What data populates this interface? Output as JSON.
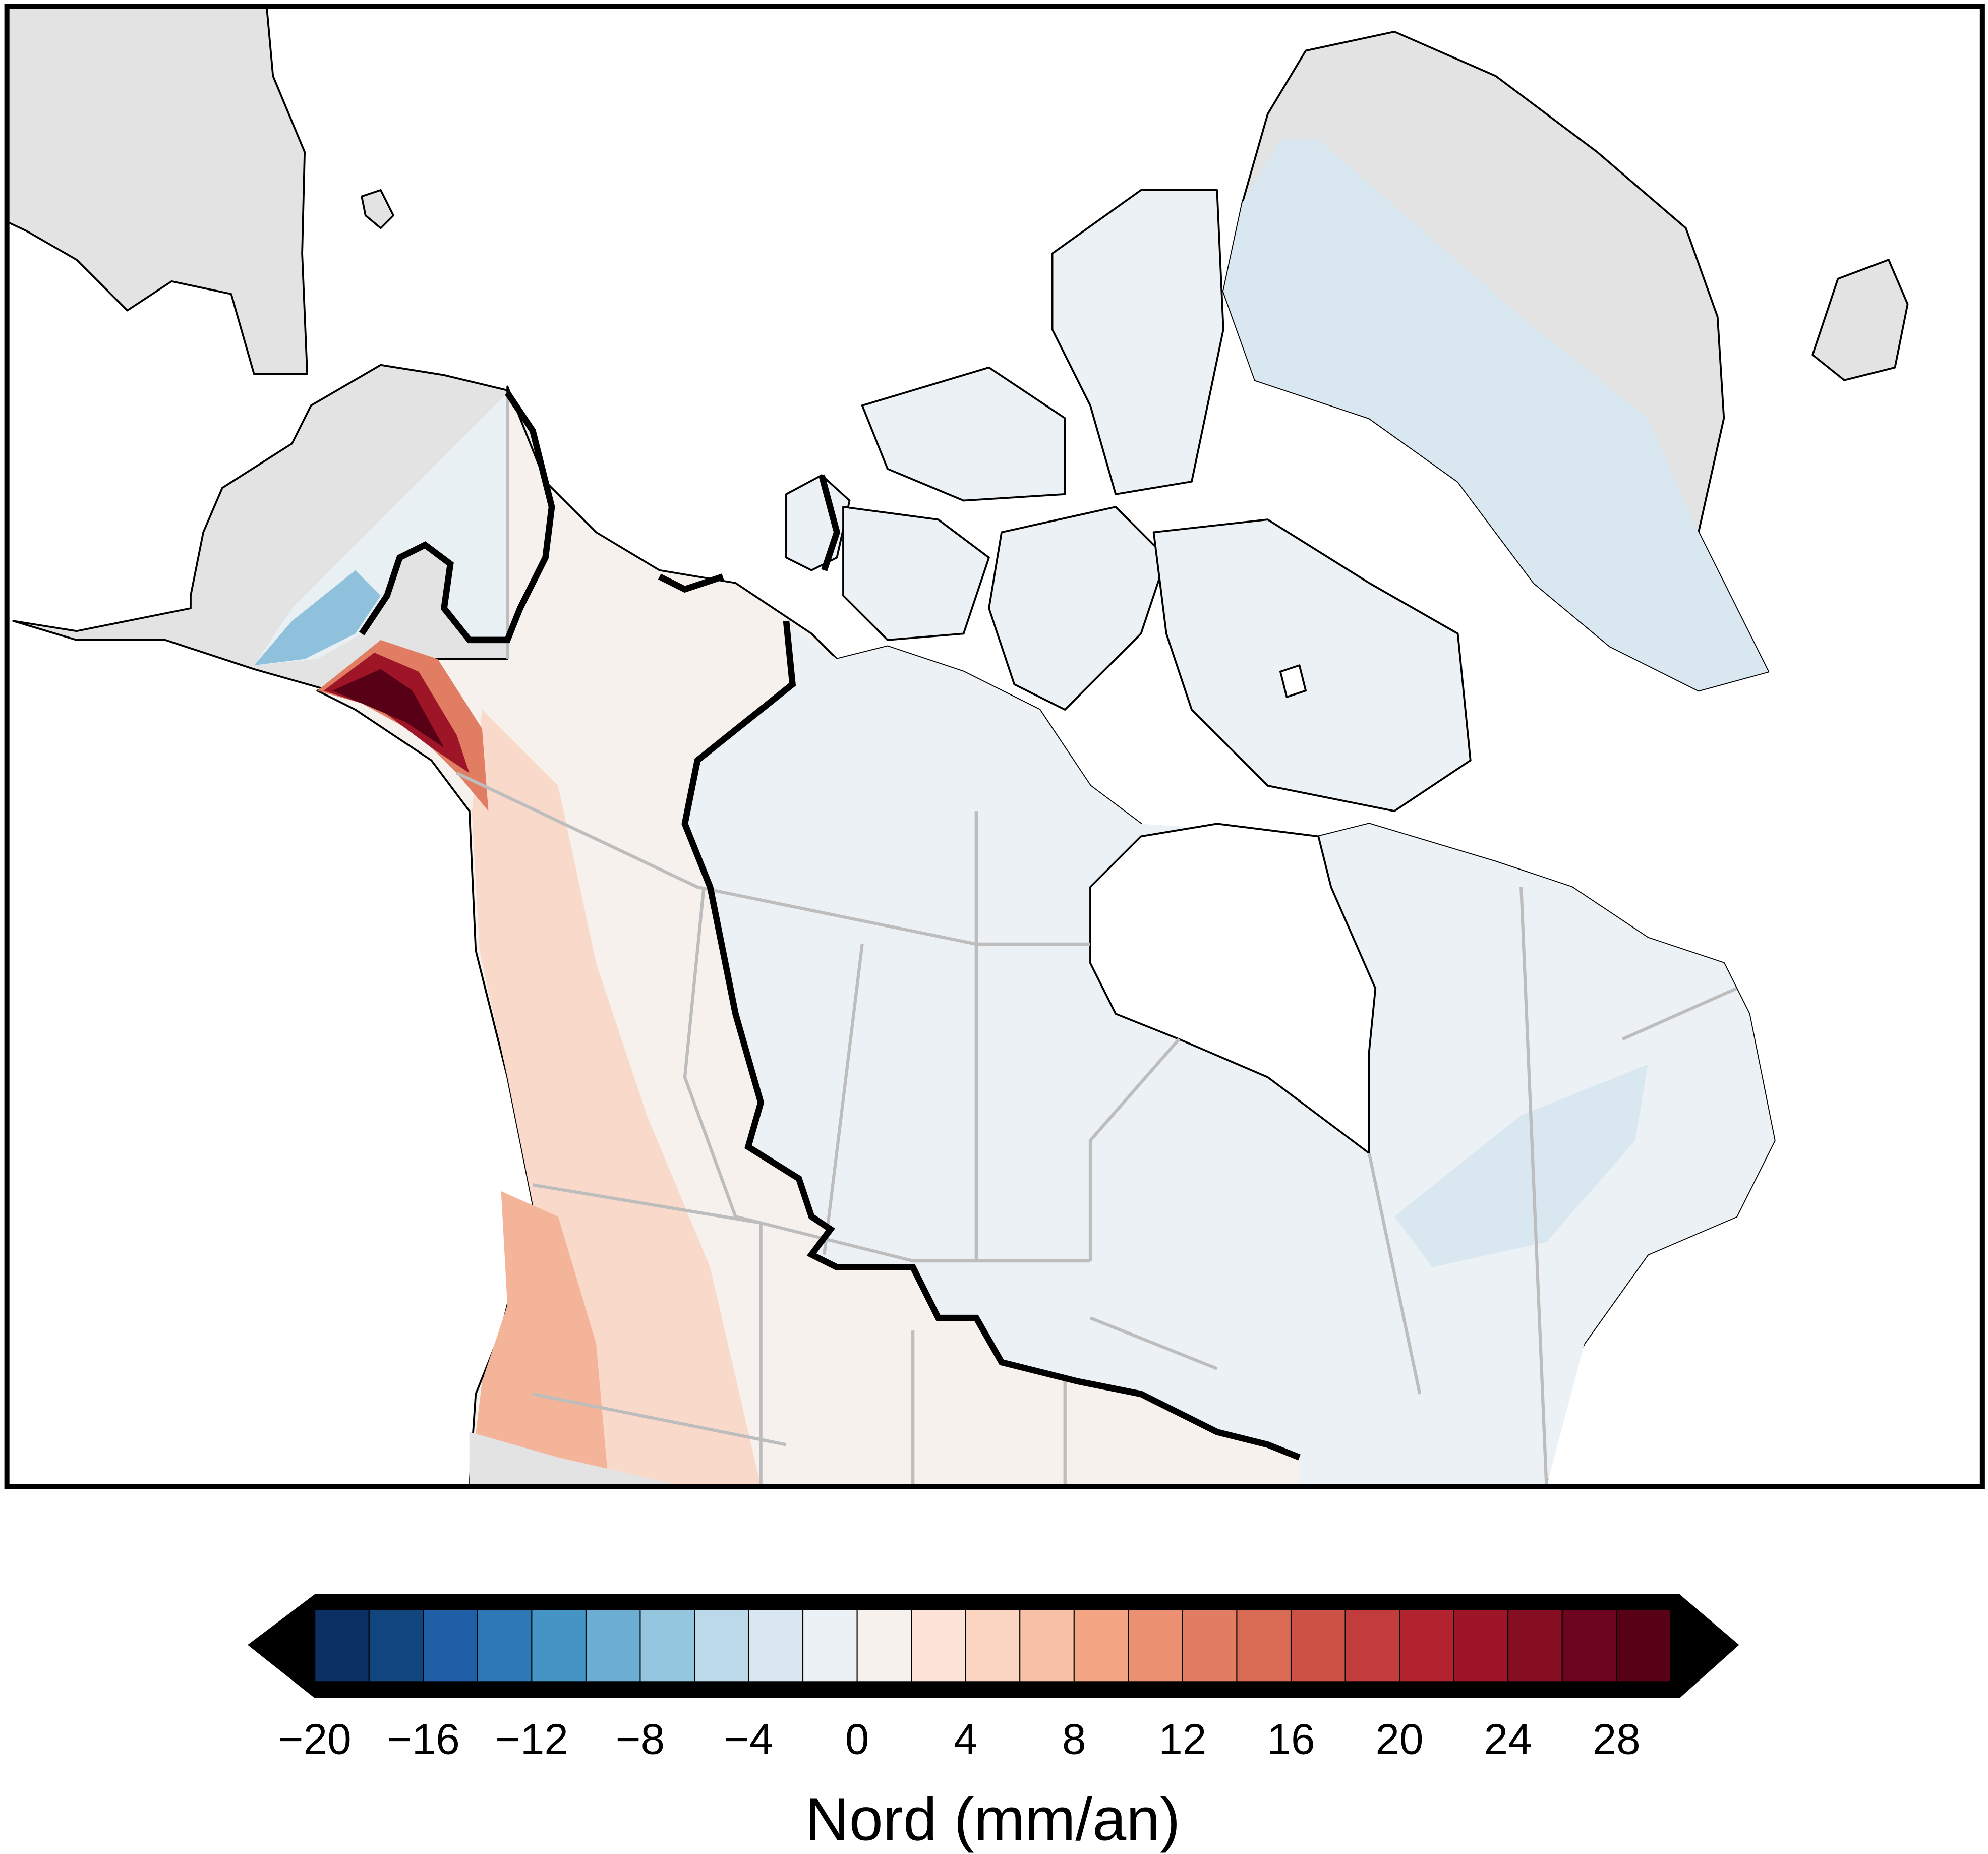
{
  "chart_data": {
    "type": "colorbar",
    "label": "Nord (mm/an)",
    "xlim": [
      -20,
      30
    ],
    "bins": [
      -20,
      -18,
      -16,
      -14,
      -12,
      -10,
      -8,
      -6,
      -4,
      -2,
      0,
      2,
      4,
      6,
      8,
      10,
      12,
      14,
      16,
      18,
      20,
      22,
      24,
      26,
      28,
      30
    ],
    "colors": [
      "#0b2f62",
      "#10457e",
      "#1f5fa8",
      "#2e78b7",
      "#4494c5",
      "#6badd3",
      "#95c6df",
      "#bcd9ea",
      "#d8e7f0",
      "#ebf1f5",
      "#f6f1ec",
      "#fbe4d7",
      "#fbd4c2",
      "#f8c0a6",
      "#f4a684",
      "#eb9171",
      "#e07d63",
      "#d96a54",
      "#cd5245",
      "#c33c3c",
      "#b2222f",
      "#9e1527",
      "#860e23",
      "#6e0520",
      "#580016"
    ],
    "xticks": [
      {
        "value": -20,
        "label": "−20"
      },
      {
        "value": -16,
        "label": "−16"
      },
      {
        "value": -12,
        "label": "−12"
      },
      {
        "value": -8,
        "label": "−8"
      },
      {
        "value": -4,
        "label": "−4"
      },
      0,
      4,
      8,
      12,
      16,
      20,
      24,
      28
    ]
  }
}
